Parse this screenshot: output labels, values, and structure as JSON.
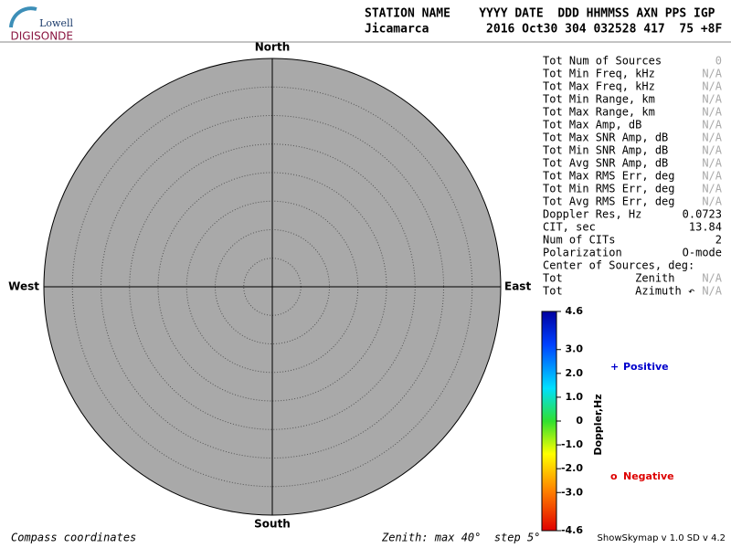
{
  "header": {
    "logo_top": "Lowell",
    "logo_bottom": "DIGISONDE",
    "columns": "STATION NAME    YYYY DATE  DDD HHMMSS AXN PPS IGP",
    "values": "Jicamarca        2016 Oct30 304 032528 417  75 +8F"
  },
  "compass": {
    "north": "North",
    "south": "South",
    "east": "East",
    "west": "West"
  },
  "stats": [
    {
      "label": "Tot Num of Sources",
      "value": "0",
      "color": "#aaaaaa"
    },
    {
      "label": "Tot Min Freq, kHz",
      "value": "N/A",
      "color": "#aaaaaa"
    },
    {
      "label": "Tot Max Freq, kHz",
      "value": "N/A",
      "color": "#aaaaaa"
    },
    {
      "label": "Tot Min Range, km",
      "value": "N/A",
      "color": "#aaaaaa"
    },
    {
      "label": "Tot Max Range, km",
      "value": "N/A",
      "color": "#aaaaaa"
    },
    {
      "label": "Tot Max Amp, dB",
      "value": "N/A",
      "color": "#aaaaaa"
    },
    {
      "label": "Tot Max SNR Amp, dB",
      "value": "N/A",
      "color": "#aaaaaa"
    },
    {
      "label": "Tot Min SNR Amp, dB",
      "value": "N/A",
      "color": "#aaaaaa"
    },
    {
      "label": "Tot Avg SNR Amp, dB",
      "value": "N/A",
      "color": "#aaaaaa"
    },
    {
      "label": "Tot Max RMS Err, deg",
      "value": "N/A",
      "color": "#aaaaaa"
    },
    {
      "label": "Tot Min RMS Err, deg",
      "value": "N/A",
      "color": "#aaaaaa"
    },
    {
      "label": "Tot Avg RMS Err, deg",
      "value": "N/A",
      "color": "#aaaaaa"
    },
    {
      "label": "Doppler Res, Hz",
      "value": "0.0723",
      "color": "#000000"
    },
    {
      "label": "CIT, sec",
      "value": "13.84",
      "color": "#000000"
    },
    {
      "label": "Num of CITs",
      "value": "2",
      "color": "#000000"
    },
    {
      "label": "Polarization",
      "value": "O-mode",
      "color": "#000000"
    },
    {
      "label": "Center of Sources, deg:"
    },
    {
      "label": "Tot           Zenith",
      "value": "N/A",
      "color": "#aaaaaa"
    },
    {
      "label": "Tot           Azimuth ↶",
      "value": "N/A",
      "color": "#aaaaaa"
    }
  ],
  "colorbar": {
    "label": "Doppler,Hz",
    "lim": [
      -4.6,
      4.6
    ],
    "ticks": [
      4.6,
      {
        "value": 3,
        "label": "3.0"
      },
      {
        "value": 2,
        "label": "2.0"
      },
      {
        "value": 1,
        "label": "1.0"
      },
      0,
      {
        "value": -1,
        "label": "-1.0"
      },
      {
        "value": -2,
        "label": "-2.0"
      },
      {
        "value": -3,
        "label": "-3.0"
      },
      -4.6
    ]
  },
  "legend": {
    "positive": {
      "symbol": "+",
      "text": "Positive",
      "color": "#0000cc"
    },
    "negative": {
      "symbol": "o",
      "text": "Negative",
      "color": "#dd0000"
    }
  },
  "footer": {
    "left": "Compass coordinates",
    "center": "Zenith: max 40°  step 5°",
    "right": "ShowSkymap v 1.0  SD v 4.2"
  }
}
